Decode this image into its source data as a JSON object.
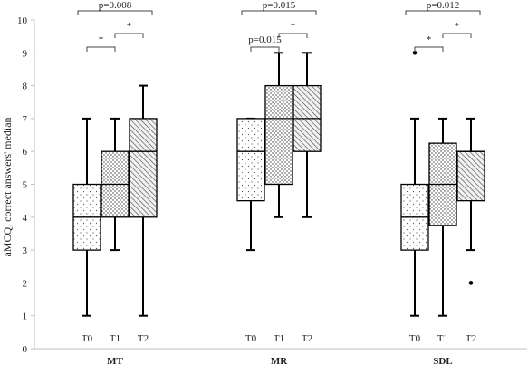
{
  "chart_data": {
    "type": "box",
    "ylabel": "aMCQ, correct answers' median",
    "ylim": [
      0,
      10
    ],
    "yticks": [
      "0",
      "1",
      "2",
      "3",
      "4",
      "5",
      "6",
      "7",
      "8",
      "9",
      "10"
    ],
    "grid": false,
    "groups": [
      {
        "name": "MT",
        "boxes": [
          {
            "label": "T0",
            "pattern": "sparse-dots",
            "min": 1,
            "q1": 3,
            "median": 4,
            "q3": 5,
            "max": 7,
            "outliers": []
          },
          {
            "label": "T1",
            "pattern": "dense-dots",
            "min": 3,
            "q1": 4,
            "median": 5,
            "q3": 6,
            "max": 7,
            "outliers": []
          },
          {
            "label": "T2",
            "pattern": "hatch",
            "min": 1,
            "q1": 4,
            "median": 6,
            "q3": 7,
            "max": 8,
            "outliers": []
          }
        ],
        "annotations": [
          {
            "from": 0,
            "to": 2,
            "text": "p=0.008"
          },
          {
            "from": 0,
            "to": 1,
            "text": "*"
          },
          {
            "from": 1,
            "to": 2,
            "text": "*"
          }
        ]
      },
      {
        "name": "MR",
        "boxes": [
          {
            "label": "T0",
            "pattern": "sparse-dots",
            "min": 3,
            "q1": 4.5,
            "median": 6,
            "q3": 7,
            "max": 7,
            "outliers": []
          },
          {
            "label": "T1",
            "pattern": "dense-dots",
            "min": 4,
            "q1": 5,
            "median": 7,
            "q3": 8,
            "max": 9,
            "outliers": []
          },
          {
            "label": "T2",
            "pattern": "hatch",
            "min": 4,
            "q1": 6,
            "median": 7,
            "q3": 8,
            "max": 9,
            "outliers": []
          }
        ],
        "annotations": [
          {
            "from": 0,
            "to": 2,
            "text": "p=0.015"
          },
          {
            "from": 0,
            "to": 1,
            "text": "p=0.015"
          },
          {
            "from": 1,
            "to": 2,
            "text": "*"
          }
        ]
      },
      {
        "name": "SDL",
        "boxes": [
          {
            "label": "T0",
            "pattern": "sparse-dots",
            "min": 1,
            "q1": 3,
            "median": 4,
            "q3": 5,
            "max": 7,
            "outliers": [
              9
            ]
          },
          {
            "label": "T1",
            "pattern": "dense-dots",
            "min": 1,
            "q1": 3.75,
            "median": 5,
            "q3": 6.25,
            "max": 7,
            "outliers": []
          },
          {
            "label": "T2",
            "pattern": "hatch",
            "min": 3,
            "q1": 4.5,
            "median": 6,
            "q3": 6,
            "max": 7,
            "outliers": [
              2
            ]
          }
        ],
        "annotations": [
          {
            "from": 0,
            "to": 2,
            "text": "p=0.012"
          },
          {
            "from": 0,
            "to": 1,
            "text": "*"
          },
          {
            "from": 1,
            "to": 2,
            "text": "*"
          }
        ]
      }
    ]
  }
}
